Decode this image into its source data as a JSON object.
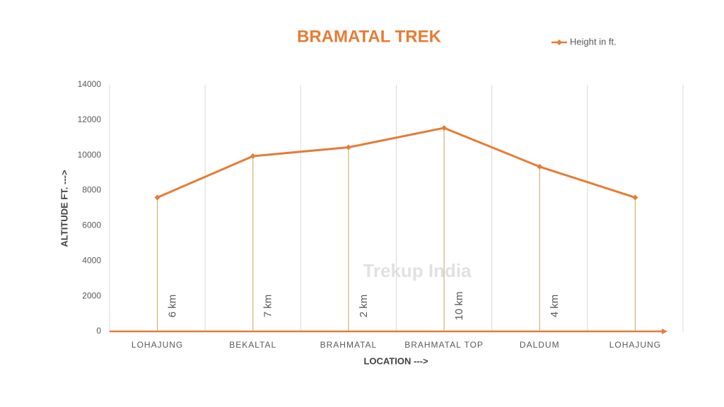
{
  "chart_data": {
    "type": "line",
    "title": "BRAMATAL TREK",
    "x_label": "LOCATION --->",
    "y_label": "ALTITUDE FT. --->",
    "categories": [
      "LOHAJUNG",
      "BEKALTAL",
      "BRAHMATAL",
      "BRAHMATAL TOP",
      "DALDUM",
      "LOHAJUNG"
    ],
    "series": [
      {
        "name": "Height in ft.",
        "color": "#e57c35",
        "values": [
          7600,
          9950,
          10450,
          11550,
          9350,
          7600
        ]
      }
    ],
    "ylim": [
      0,
      14000
    ],
    "yticks": [
      0,
      2000,
      4000,
      6000,
      8000,
      10000,
      12000,
      14000
    ],
    "annotations": [
      "6 km",
      "7 km",
      "2 km",
      "10 km",
      "4 km"
    ],
    "watermark": "Trekup India",
    "legend": "top-right"
  }
}
